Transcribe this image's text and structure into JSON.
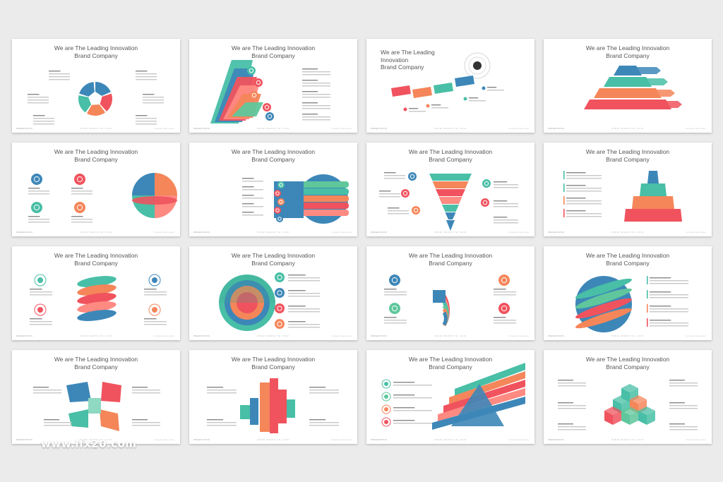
{
  "slide_title": {
    "line1": "We are The Leading Innovation",
    "line2": "Brand Company"
  },
  "footer": {
    "left": "PRESENTATION",
    "center": "WWW.WEBSITE.COM",
    "right": "Company Name Here"
  },
  "watermark": "www.lfx20.com",
  "colors": {
    "blue": "#3d87b8",
    "teal": "#48bfa6",
    "red": "#f0535e",
    "orange": "#f4865a",
    "pink": "#ff8a82",
    "green": "#5fc79b",
    "white": "#ffffff"
  }
}
